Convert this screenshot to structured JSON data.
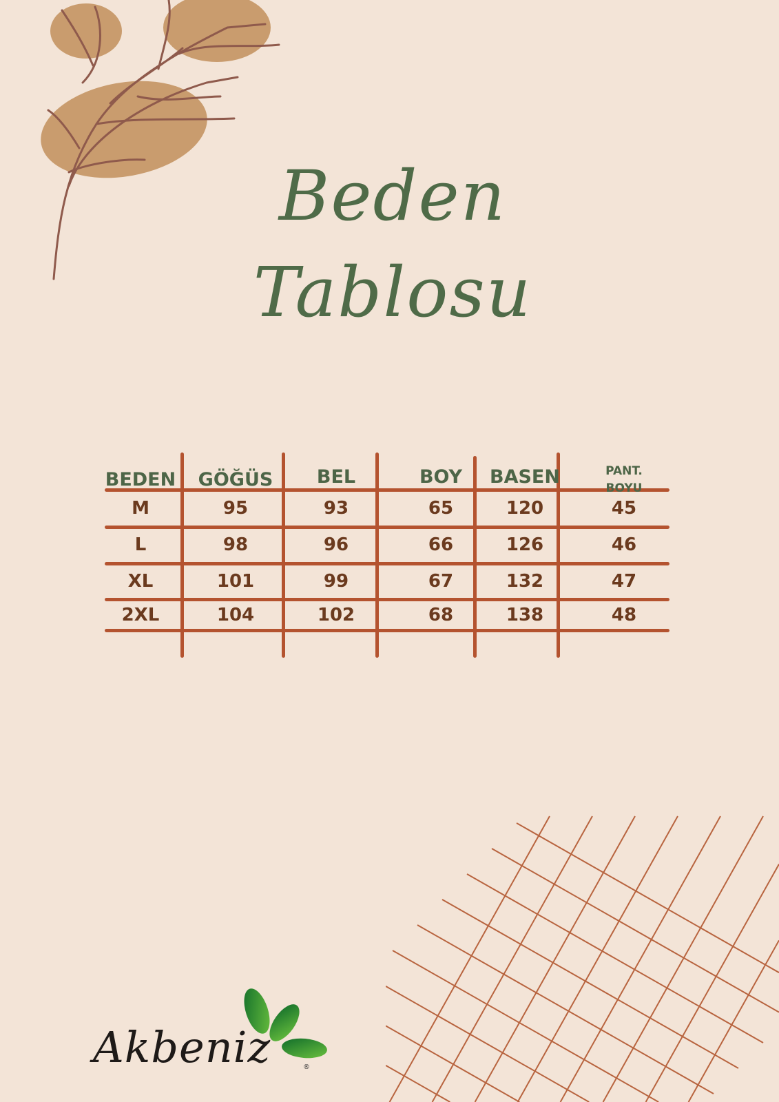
{
  "title": {
    "line1": "Beden",
    "line2": "Tablosu"
  },
  "table": {
    "headers": [
      "BEDEN",
      "GÖĞÜS",
      "BEL",
      "BOY",
      "BASEN",
      "PANT.",
      "BOYU"
    ],
    "rows": [
      [
        "M",
        "95",
        "93",
        "65",
        "120",
        "45"
      ],
      [
        "L",
        "98",
        "96",
        "66",
        "126",
        "46"
      ],
      [
        "XL",
        "101",
        "99",
        "67",
        "132",
        "47"
      ],
      [
        "2XL",
        "104",
        "102",
        "68",
        "138",
        "48"
      ]
    ]
  },
  "logo": {
    "text": "Akbeniz",
    "mark": "®"
  },
  "colors": {
    "background": "#f3e4d7",
    "title": "#4f6b48",
    "header": "#4d6547",
    "lines": "#b4532f",
    "values": "#6b3a1e",
    "blob": "#c99c6e",
    "logo_green": "#1f8a2e"
  }
}
